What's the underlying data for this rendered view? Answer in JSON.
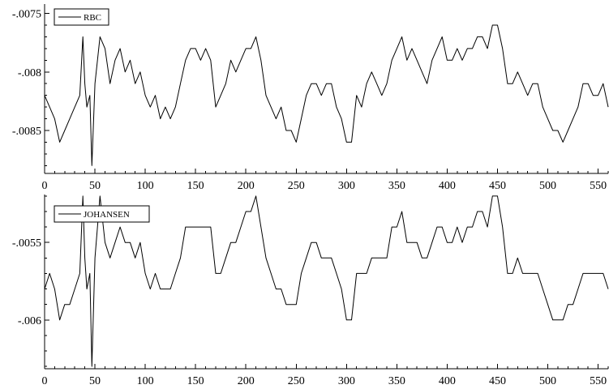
{
  "chart_data": [
    {
      "type": "line",
      "title": "",
      "xlabel": "",
      "ylabel": "",
      "legend_position": "top-left",
      "grid": false,
      "xlim": [
        0,
        560
      ],
      "ylim": [
        -0.00886,
        -0.00742
      ],
      "x_ticks": [
        0,
        50,
        100,
        150,
        200,
        250,
        300,
        350,
        400,
        450,
        500,
        550
      ],
      "x_tick_labels": [
        "0",
        "50",
        "100",
        "150",
        "200",
        "250",
        "300",
        "350",
        "400",
        "450",
        "500",
        "550"
      ],
      "y_ticks": [
        -0.0075,
        -0.008,
        -0.0085
      ],
      "y_tick_labels": [
        "-.0075",
        "-.008",
        "-.0085"
      ],
      "series": [
        {
          "name": "RBC",
          "x": [
            0,
            5,
            10,
            15,
            20,
            25,
            30,
            35,
            38,
            40,
            42,
            45,
            47,
            50,
            55,
            60,
            65,
            70,
            75,
            80,
            85,
            90,
            95,
            100,
            105,
            110,
            115,
            120,
            125,
            130,
            135,
            140,
            145,
            150,
            155,
            160,
            165,
            170,
            175,
            180,
            185,
            190,
            195,
            200,
            205,
            210,
            215,
            220,
            225,
            230,
            235,
            240,
            245,
            250,
            255,
            260,
            265,
            270,
            275,
            280,
            285,
            290,
            295,
            300,
            305,
            310,
            315,
            320,
            325,
            330,
            335,
            340,
            345,
            350,
            355,
            360,
            365,
            370,
            375,
            380,
            385,
            390,
            395,
            400,
            405,
            410,
            415,
            420,
            425,
            430,
            435,
            440,
            445,
            450,
            455,
            460,
            465,
            470,
            475,
            480,
            485,
            490,
            495,
            500,
            505,
            510,
            515,
            520,
            525,
            530,
            535,
            540,
            545,
            550,
            555,
            560
          ],
          "y": [
            -0.0082,
            -0.0083,
            -0.0084,
            -0.0086,
            -0.0085,
            -0.0084,
            -0.0083,
            -0.0082,
            -0.0077,
            -0.0081,
            -0.0083,
            -0.0082,
            -0.0088,
            -0.0081,
            -0.0077,
            -0.0078,
            -0.0081,
            -0.0079,
            -0.0078,
            -0.008,
            -0.0079,
            -0.0081,
            -0.008,
            -0.0082,
            -0.0083,
            -0.0082,
            -0.0084,
            -0.0083,
            -0.0084,
            -0.0083,
            -0.0081,
            -0.0079,
            -0.0078,
            -0.0078,
            -0.0079,
            -0.0078,
            -0.0079,
            -0.0083,
            -0.0082,
            -0.0081,
            -0.0079,
            -0.008,
            -0.0079,
            -0.0078,
            -0.0078,
            -0.0077,
            -0.0079,
            -0.0082,
            -0.0083,
            -0.0084,
            -0.0083,
            -0.0085,
            -0.0085,
            -0.0086,
            -0.0084,
            -0.0082,
            -0.0081,
            -0.0081,
            -0.0082,
            -0.0081,
            -0.0081,
            -0.0083,
            -0.0084,
            -0.0086,
            -0.0086,
            -0.0082,
            -0.0083,
            -0.0081,
            -0.008,
            -0.0081,
            -0.0082,
            -0.0081,
            -0.0079,
            -0.0078,
            -0.0077,
            -0.0079,
            -0.0078,
            -0.0079,
            -0.008,
            -0.0081,
            -0.0079,
            -0.0078,
            -0.0077,
            -0.0079,
            -0.0079,
            -0.0078,
            -0.0079,
            -0.0078,
            -0.0078,
            -0.0077,
            -0.0077,
            -0.0078,
            -0.0076,
            -0.0076,
            -0.0078,
            -0.0081,
            -0.0081,
            -0.008,
            -0.0081,
            -0.0082,
            -0.0081,
            -0.0081,
            -0.0083,
            -0.0084,
            -0.0085,
            -0.0085,
            -0.0086,
            -0.0085,
            -0.0084,
            -0.0083,
            -0.0081,
            -0.0081,
            -0.0082,
            -0.0082,
            -0.0081,
            -0.0083
          ]
        }
      ]
    },
    {
      "type": "line",
      "title": "",
      "xlabel": "",
      "ylabel": "",
      "legend_position": "top-left",
      "grid": false,
      "xlim": [
        0,
        560
      ],
      "ylim": [
        -0.00631,
        -0.00519
      ],
      "x_ticks": [
        0,
        50,
        100,
        150,
        200,
        250,
        300,
        350,
        400,
        450,
        500,
        550
      ],
      "x_tick_labels": [
        "0",
        "50",
        "100",
        "150",
        "200",
        "250",
        "300",
        "350",
        "400",
        "450",
        "500",
        "550"
      ],
      "y_ticks": [
        -0.0055,
        -0.006
      ],
      "y_tick_labels": [
        "-.0055",
        "-.006"
      ],
      "series": [
        {
          "name": "JOHANSEN",
          "x": [
            0,
            5,
            10,
            15,
            20,
            25,
            30,
            35,
            38,
            40,
            42,
            45,
            47,
            50,
            55,
            60,
            65,
            70,
            75,
            80,
            85,
            90,
            95,
            100,
            105,
            110,
            115,
            120,
            125,
            130,
            135,
            140,
            145,
            150,
            155,
            160,
            165,
            170,
            175,
            180,
            185,
            190,
            195,
            200,
            205,
            210,
            215,
            220,
            225,
            230,
            235,
            240,
            245,
            250,
            255,
            260,
            265,
            270,
            275,
            280,
            285,
            290,
            295,
            300,
            305,
            310,
            315,
            320,
            325,
            330,
            335,
            340,
            345,
            350,
            355,
            360,
            365,
            370,
            375,
            380,
            385,
            390,
            395,
            400,
            405,
            410,
            415,
            420,
            425,
            430,
            435,
            440,
            445,
            450,
            455,
            460,
            465,
            470,
            475,
            480,
            485,
            490,
            495,
            500,
            505,
            510,
            515,
            520,
            525,
            530,
            535,
            540,
            545,
            550,
            555,
            560
          ],
          "y": [
            -0.0058,
            -0.0057,
            -0.0058,
            -0.006,
            -0.0059,
            -0.0059,
            -0.0058,
            -0.0057,
            -0.0052,
            -0.0056,
            -0.0058,
            -0.0057,
            -0.0063,
            -0.0056,
            -0.0052,
            -0.0055,
            -0.0056,
            -0.0055,
            -0.0054,
            -0.0055,
            -0.0055,
            -0.0056,
            -0.0055,
            -0.0057,
            -0.0058,
            -0.0057,
            -0.0058,
            -0.0058,
            -0.0058,
            -0.0057,
            -0.0056,
            -0.0054,
            -0.0054,
            -0.0054,
            -0.0054,
            -0.0054,
            -0.0054,
            -0.0057,
            -0.0057,
            -0.0056,
            -0.0055,
            -0.0055,
            -0.0054,
            -0.0053,
            -0.0053,
            -0.0052,
            -0.0054,
            -0.0056,
            -0.0057,
            -0.0058,
            -0.0058,
            -0.0059,
            -0.0059,
            -0.0059,
            -0.0057,
            -0.0056,
            -0.0055,
            -0.0055,
            -0.0056,
            -0.0056,
            -0.0056,
            -0.0057,
            -0.0058,
            -0.006,
            -0.006,
            -0.0057,
            -0.0057,
            -0.0057,
            -0.0056,
            -0.0056,
            -0.0056,
            -0.0056,
            -0.0054,
            -0.0054,
            -0.0053,
            -0.0055,
            -0.0055,
            -0.0055,
            -0.0056,
            -0.0056,
            -0.0055,
            -0.0054,
            -0.0054,
            -0.0055,
            -0.0055,
            -0.0054,
            -0.0055,
            -0.0054,
            -0.0054,
            -0.0053,
            -0.0053,
            -0.0054,
            -0.0052,
            -0.0052,
            -0.0054,
            -0.0057,
            -0.0057,
            -0.0056,
            -0.0057,
            -0.0057,
            -0.0057,
            -0.0057,
            -0.0058,
            -0.0059,
            -0.006,
            -0.006,
            -0.006,
            -0.0059,
            -0.0059,
            -0.0058,
            -0.0057,
            -0.0057,
            -0.0057,
            -0.0057,
            -0.0057,
            -0.0058
          ]
        }
      ]
    }
  ]
}
